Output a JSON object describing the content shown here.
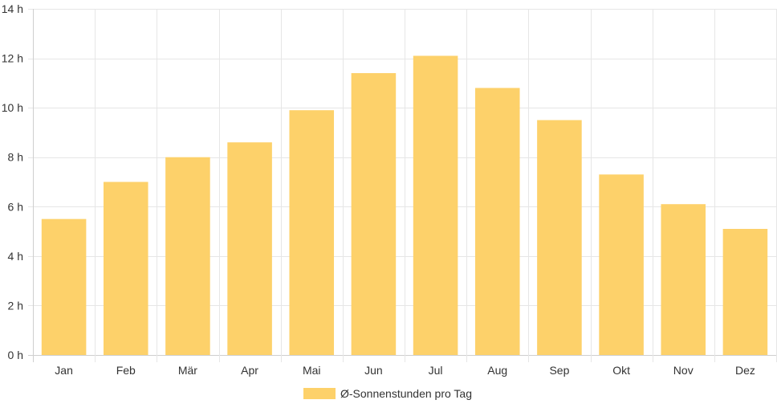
{
  "chart_data": {
    "type": "bar",
    "categories": [
      "Jan",
      "Feb",
      "Mär",
      "Apr",
      "Mai",
      "Jun",
      "Jul",
      "Aug",
      "Sep",
      "Okt",
      "Nov",
      "Dez"
    ],
    "series": [
      {
        "name": "Ø-Sonnenstunden pro Tag",
        "values": [
          5.5,
          7.0,
          8.0,
          8.6,
          9.9,
          11.4,
          12.1,
          10.8,
          9.5,
          7.3,
          6.1,
          5.1
        ],
        "color": "#fdd16a"
      }
    ],
    "y_ticks": [
      "0 h",
      "2 h",
      "4 h",
      "6 h",
      "8 h",
      "10 h",
      "12 h",
      "14 h"
    ],
    "ylim": [
      0,
      14
    ],
    "ytick_step": 2,
    "grid": true,
    "legend_position": "bottom",
    "title": "",
    "xlabel": "",
    "ylabel": ""
  }
}
